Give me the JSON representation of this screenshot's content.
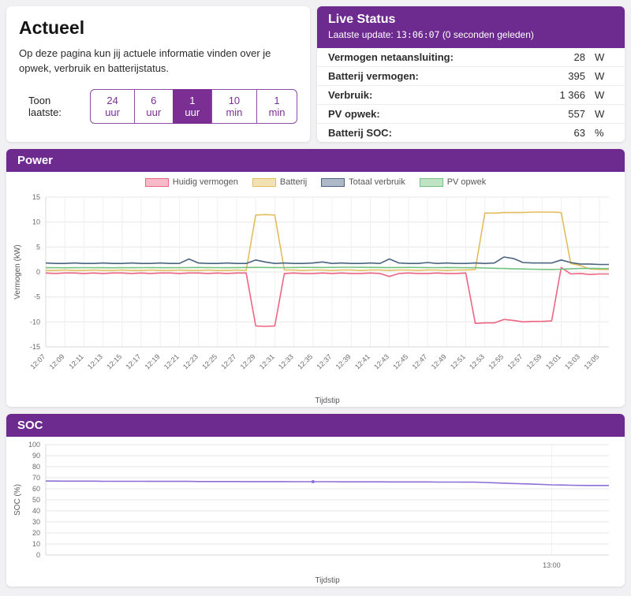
{
  "theme": {
    "purple": "#6e2b8f",
    "button_purple": "#7b2f93",
    "button_border": "#8a4da8"
  },
  "intro": {
    "title": "Actueel",
    "description": "Op deze pagina kun jij actuele informatie vinden over je opwek, verbruik en batterijstatus.",
    "range_label": "Toon laatste:",
    "range_buttons": [
      {
        "label": "24 uur",
        "active": false
      },
      {
        "label": "6 uur",
        "active": false
      },
      {
        "label": "1 uur",
        "active": true
      },
      {
        "label": "10 min",
        "active": false
      },
      {
        "label": "1 min",
        "active": false
      }
    ]
  },
  "live_status": {
    "title": "Live Status",
    "last_update_label": "Laatste update:",
    "last_update_time": "13:06:07",
    "last_update_suffix": "(0 seconden geleden)",
    "rows": [
      {
        "label": "Vermogen netaansluiting:",
        "value": "28",
        "unit": "W"
      },
      {
        "label": "Batterij vermogen:",
        "value": "395",
        "unit": "W"
      },
      {
        "label": "Verbruik:",
        "value": "1 366",
        "unit": "W"
      },
      {
        "label": "PV opwek:",
        "value": "557",
        "unit": "W"
      },
      {
        "label": "Batterij SOC:",
        "value": "63",
        "unit": "%"
      }
    ]
  },
  "chart_data": [
    {
      "id": "power",
      "type": "line",
      "title": "Power",
      "xlabel": "Tijdstip",
      "ylabel": "Vermogen (kW)",
      "ylim": [
        -15,
        15
      ],
      "ystep": 5,
      "grid": true,
      "legend_position": "top",
      "x_ticks": [
        "12:07",
        "12:09",
        "12:11",
        "12:13",
        "12:15",
        "12:17",
        "12:19",
        "12:21",
        "12:23",
        "12:25",
        "12:27",
        "12:29",
        "12:31",
        "12:33",
        "12:35",
        "12:37",
        "12:39",
        "12:41",
        "12:43",
        "12:45",
        "12:47",
        "12:49",
        "12:51",
        "12:53",
        "12:55",
        "12:57",
        "12:59",
        "13:01",
        "13:03",
        "13:05"
      ],
      "x_tick_positions": [
        0,
        2,
        4,
        6,
        8,
        10,
        12,
        14,
        16,
        18,
        20,
        22,
        24,
        26,
        28,
        30,
        32,
        34,
        36,
        38,
        40,
        42,
        44,
        46,
        48,
        50,
        52,
        54,
        56,
        58
      ],
      "series": [
        {
          "name": "Huidig vermogen",
          "color": "#ee6584",
          "values": [
            -0.2,
            -0.3,
            -0.2,
            -0.2,
            -0.3,
            -0.2,
            -0.3,
            -0.2,
            -0.2,
            -0.3,
            -0.2,
            -0.3,
            -0.2,
            -0.2,
            -0.3,
            -0.2,
            -0.2,
            -0.3,
            -0.2,
            -0.3,
            -0.2,
            -0.2,
            -10.8,
            -10.9,
            -10.8,
            -0.3,
            -0.2,
            -0.3,
            -0.3,
            -0.2,
            -0.3,
            -0.2,
            -0.3,
            -0.3,
            -0.2,
            -0.3,
            -0.9,
            -0.3,
            -0.2,
            -0.3,
            -0.3,
            -0.2,
            -0.3,
            -0.3,
            -0.2,
            -10.3,
            -10.2,
            -10.2,
            -9.5,
            -9.7,
            -10.0,
            -9.9,
            -9.9,
            -9.8,
            0.9,
            -0.4,
            -0.3,
            -0.5,
            -0.4,
            -0.4
          ]
        },
        {
          "name": "Batterij",
          "color": "#e2bd5b",
          "values": [
            0.3,
            0.3,
            0.4,
            0.3,
            0.3,
            0.4,
            0.3,
            0.3,
            0.4,
            0.3,
            0.3,
            0.4,
            0.3,
            0.3,
            0.4,
            0.3,
            0.3,
            0.4,
            0.3,
            0.3,
            0.4,
            0.3,
            11.4,
            11.5,
            11.4,
            0.4,
            0.4,
            0.3,
            0.4,
            0.4,
            0.3,
            0.4,
            0.4,
            0.3,
            0.4,
            0.4,
            0.3,
            0.4,
            0.4,
            0.3,
            0.4,
            0.4,
            0.3,
            0.4,
            0.4,
            0.5,
            11.8,
            11.8,
            11.9,
            11.9,
            11.9,
            12.0,
            12.0,
            12.0,
            11.9,
            1.7,
            1.3,
            0.6,
            0.5,
            0.5
          ]
        },
        {
          "name": "Totaal verbruik",
          "color": "#4a6480",
          "values": [
            1.8,
            1.7,
            1.7,
            1.8,
            1.7,
            1.7,
            1.8,
            1.7,
            1.7,
            1.8,
            1.7,
            1.7,
            1.8,
            1.7,
            1.7,
            2.6,
            1.8,
            1.7,
            1.7,
            1.8,
            1.7,
            1.7,
            2.4,
            2.0,
            1.7,
            1.8,
            1.7,
            1.7,
            1.8,
            2.0,
            1.7,
            1.8,
            1.7,
            1.7,
            1.8,
            1.7,
            2.6,
            1.8,
            1.7,
            1.7,
            1.9,
            1.7,
            1.8,
            1.7,
            1.7,
            1.8,
            1.7,
            1.8,
            3.0,
            2.7,
            1.9,
            1.8,
            1.8,
            1.8,
            2.4,
            1.9,
            1.6,
            1.6,
            1.5,
            1.5
          ]
        },
        {
          "name": "PV opwek",
          "color": "#74c281",
          "values": [
            0.85,
            0.86,
            0.84,
            0.85,
            0.87,
            0.86,
            0.85,
            0.84,
            0.86,
            0.85,
            0.87,
            0.88,
            0.86,
            0.85,
            0.87,
            0.88,
            0.9,
            0.88,
            0.87,
            0.86,
            0.88,
            0.9,
            0.92,
            0.9,
            0.88,
            0.87,
            0.9,
            0.92,
            0.91,
            0.9,
            0.92,
            0.94,
            0.95,
            0.93,
            0.92,
            0.9,
            0.88,
            0.9,
            0.92,
            0.9,
            0.88,
            0.87,
            0.9,
            0.88,
            0.86,
            0.85,
            0.8,
            0.75,
            0.7,
            0.65,
            0.6,
            0.55,
            0.52,
            0.5,
            0.55,
            0.65,
            0.7,
            0.72,
            0.7,
            0.68
          ]
        }
      ]
    },
    {
      "id": "soc",
      "type": "line",
      "title": "SOC",
      "xlabel": "Tijdstip",
      "ylabel": "SOC (%)",
      "ylim": [
        0,
        100
      ],
      "ystep": 10,
      "grid": true,
      "legend_position": "none",
      "x_ticks": [
        "13:00"
      ],
      "x_tick_positions": [
        53
      ],
      "marker_index": 28,
      "series": [
        {
          "name": "SOC",
          "color": "#8d6fd6",
          "values": [
            67.0,
            67.0,
            66.9,
            66.9,
            66.9,
            66.9,
            66.8,
            66.8,
            66.8,
            66.8,
            66.8,
            66.7,
            66.7,
            66.7,
            66.7,
            66.7,
            66.6,
            66.6,
            66.6,
            66.6,
            66.6,
            66.5,
            66.5,
            66.5,
            66.5,
            66.5,
            66.4,
            66.4,
            66.4,
            66.4,
            66.4,
            66.3,
            66.3,
            66.3,
            66.3,
            66.3,
            66.2,
            66.2,
            66.2,
            66.2,
            66.2,
            66.1,
            66.1,
            66.1,
            66.0,
            66.0,
            65.7,
            65.4,
            65.1,
            64.8,
            64.5,
            64.2,
            63.9,
            63.6,
            63.4,
            63.2,
            63.1,
            63.0,
            63.0,
            63.0
          ]
        }
      ]
    }
  ]
}
